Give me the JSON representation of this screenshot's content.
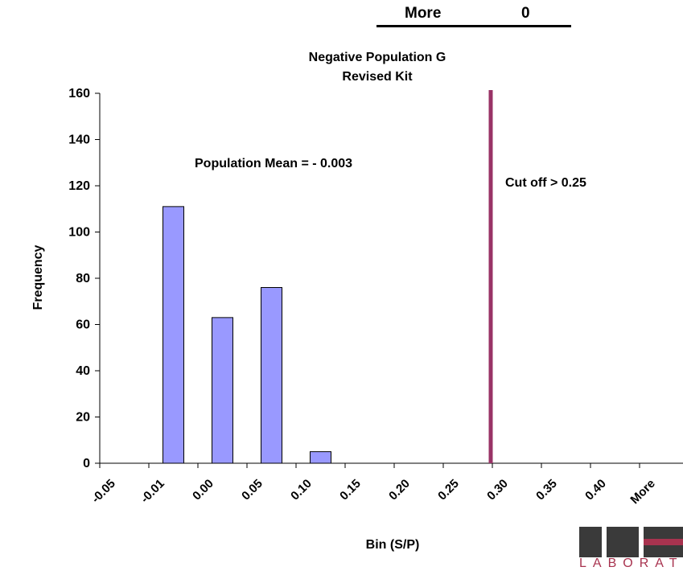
{
  "header_row": {
    "label": "More",
    "value": "0"
  },
  "chart_data": {
    "type": "bar",
    "title": "Negative Population G",
    "subtitle": "Revised Kit",
    "xlabel": "Bin (S/P)",
    "ylabel": "Frequency",
    "categories": [
      "-0.05",
      "-0.01",
      "0.00",
      "0.05",
      "0.10",
      "0.15",
      "0.20",
      "0.25",
      "0.30",
      "0.35",
      "0.40",
      "More"
    ],
    "values": [
      0,
      111,
      63,
      76,
      5,
      0,
      0,
      0,
      0,
      0,
      0,
      0
    ],
    "ylim": [
      0,
      160
    ],
    "yticks": [
      0,
      20,
      40,
      60,
      80,
      100,
      120,
      140,
      160
    ],
    "grid": false,
    "legend": "none",
    "bar_color": "#9999ff",
    "cutoff_line": {
      "category": "0.30",
      "color": "#993366"
    },
    "annotations": [
      "Population Mean = - 0.003",
      "Cut off > 0.25"
    ]
  },
  "logo": {
    "text": "LABORAT",
    "brand_color": "#a8334f",
    "dark_color": "#3a3a3a"
  }
}
